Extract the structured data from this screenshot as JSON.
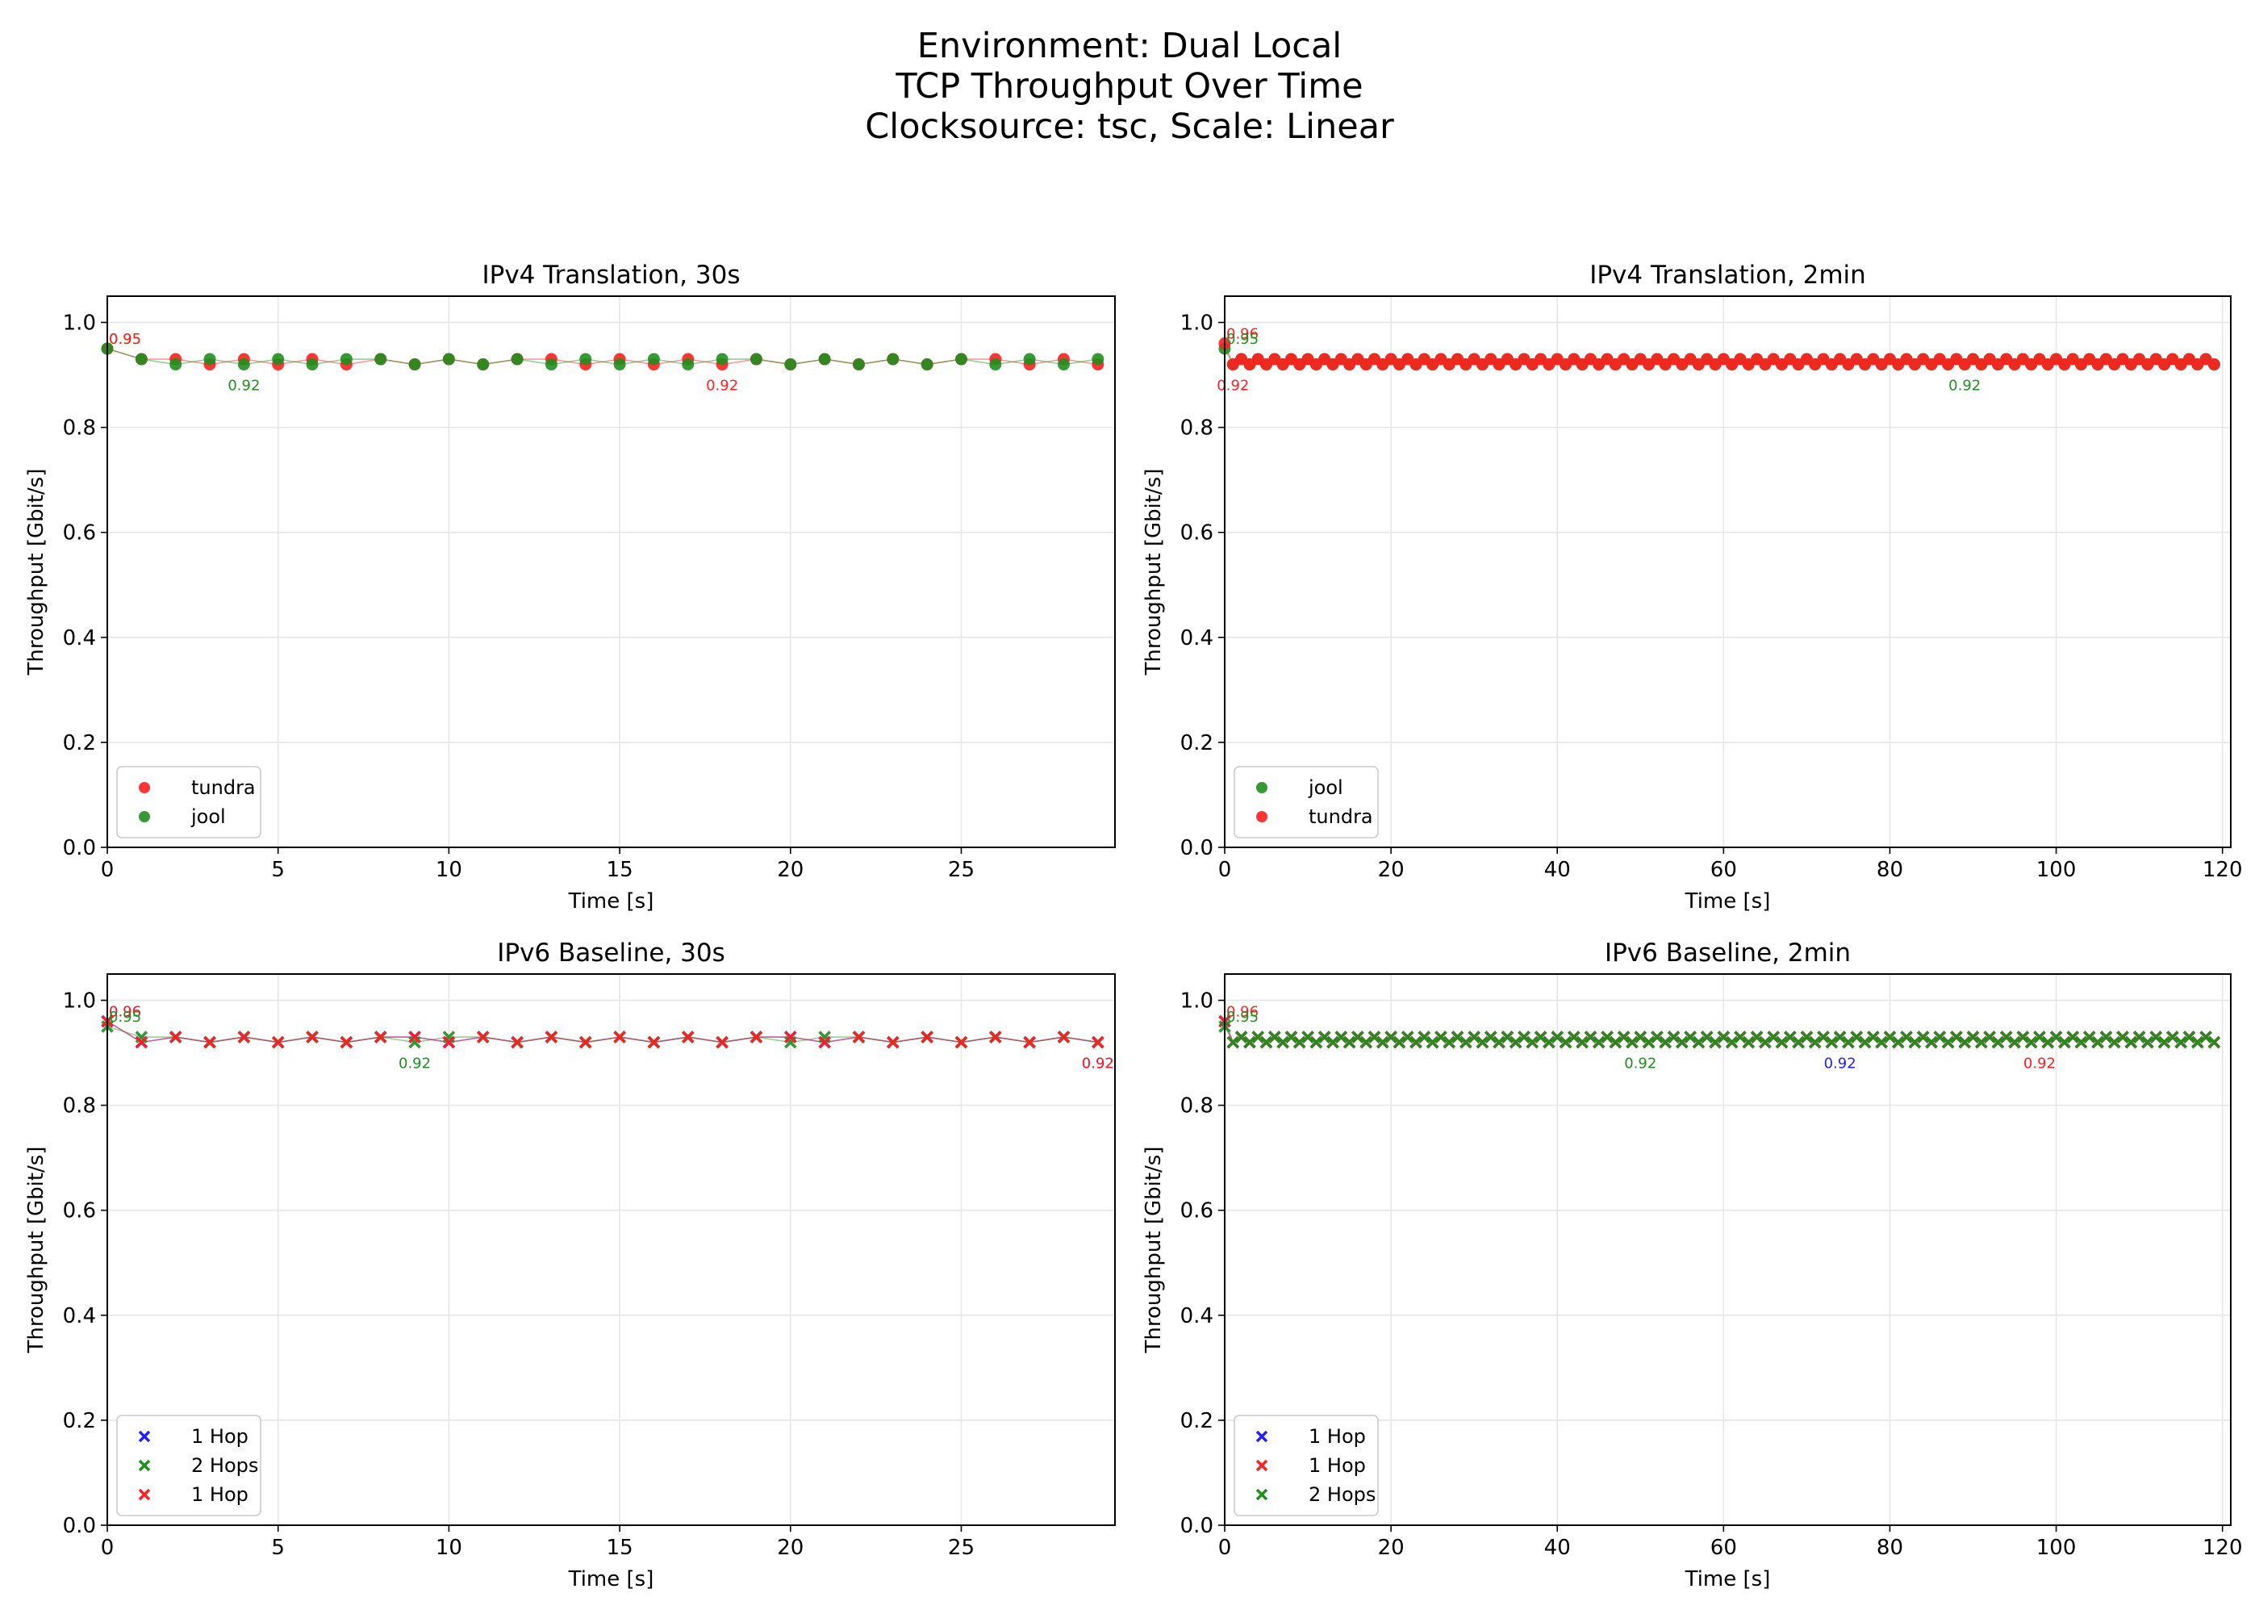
{
  "figure": {
    "title_lines": [
      "Environment: Dual Local",
      "TCP Throughput Over Time",
      "Clocksource: tsc, Scale: Linear"
    ]
  },
  "colors": {
    "red": "#ff1f1f",
    "green": "#1f8f1f",
    "blue": "#1f1fff"
  },
  "chart_data": [
    {
      "type": "scatter",
      "title": "IPv4 Translation, 30s",
      "xlabel": "Time [s]",
      "ylabel": "Throughput [Gbit/s]",
      "xlim": [
        0,
        29.5
      ],
      "ylim": [
        0,
        1.05
      ],
      "xticks": [
        0,
        5,
        10,
        15,
        20,
        25
      ],
      "yticks": [
        0.0,
        0.2,
        0.4,
        0.6,
        0.8,
        1.0
      ],
      "grid": true,
      "legend_position": "lower-left",
      "marker": "circle",
      "series": [
        {
          "name": "tundra",
          "color": "#ff1f1f",
          "x": [
            0,
            1,
            2,
            3,
            4,
            5,
            6,
            7,
            8,
            9,
            10,
            11,
            12,
            13,
            14,
            15,
            16,
            17,
            18,
            19,
            20,
            21,
            22,
            23,
            24,
            25,
            26,
            27,
            28,
            29
          ],
          "y": [
            0.95,
            0.93,
            0.93,
            0.92,
            0.93,
            0.92,
            0.93,
            0.92,
            0.93,
            0.92,
            0.93,
            0.92,
            0.93,
            0.93,
            0.92,
            0.93,
            0.92,
            0.93,
            0.92,
            0.93,
            0.92,
            0.93,
            0.92,
            0.93,
            0.92,
            0.93,
            0.93,
            0.92,
            0.93,
            0.92
          ]
        },
        {
          "name": "jool",
          "color": "#1f8f1f",
          "x": [
            0,
            1,
            2,
            3,
            4,
            5,
            6,
            7,
            8,
            9,
            10,
            11,
            12,
            13,
            14,
            15,
            16,
            17,
            18,
            19,
            20,
            21,
            22,
            23,
            24,
            25,
            26,
            27,
            28,
            29
          ],
          "y": [
            0.95,
            0.93,
            0.92,
            0.93,
            0.92,
            0.93,
            0.92,
            0.93,
            0.93,
            0.92,
            0.93,
            0.92,
            0.93,
            0.92,
            0.93,
            0.92,
            0.93,
            0.92,
            0.93,
            0.93,
            0.92,
            0.93,
            0.92,
            0.93,
            0.92,
            0.93,
            0.92,
            0.93,
            0.92,
            0.93
          ]
        }
      ],
      "annotations": [
        {
          "text": "0.95",
          "x": 0,
          "y": 0.95,
          "color": "#1f8f1f"
        },
        {
          "text": "0.95",
          "x": 0,
          "y": 0.95,
          "color": "#ff1f1f"
        },
        {
          "text": "0.92",
          "x": 4,
          "y": 0.92,
          "color": "#1f8f1f"
        },
        {
          "text": "0.92",
          "x": 18,
          "y": 0.92,
          "color": "#ff1f1f"
        }
      ]
    },
    {
      "type": "scatter",
      "title": "IPv4 Translation, 2min",
      "xlabel": "Time [s]",
      "ylabel": "Throughput [Gbit/s]",
      "xlim": [
        0,
        121
      ],
      "ylim": [
        0,
        1.05
      ],
      "xticks": [
        0,
        20,
        40,
        60,
        80,
        100,
        120
      ],
      "yticks": [
        0.0,
        0.2,
        0.4,
        0.6,
        0.8,
        1.0
      ],
      "grid": true,
      "legend_position": "lower-left",
      "marker": "circle",
      "series": [
        {
          "name": "jool",
          "color": "#1f8f1f",
          "count": 120,
          "first": 0.95,
          "low": 0.92,
          "high": 0.93
        },
        {
          "name": "tundra",
          "color": "#ff1f1f",
          "count": 120,
          "first": 0.96,
          "low": 0.92,
          "high": 0.93
        }
      ],
      "annotations": [
        {
          "text": "0.96",
          "x": 0,
          "y": 0.96,
          "color": "#ff1f1f"
        },
        {
          "text": "0.95",
          "x": 0,
          "y": 0.95,
          "color": "#1f8f1f"
        },
        {
          "text": "0.92",
          "x": 1,
          "y": 0.92,
          "color": "#ff1f1f"
        },
        {
          "text": "0.92",
          "x": 89,
          "y": 0.92,
          "color": "#1f8f1f"
        }
      ]
    },
    {
      "type": "scatter",
      "title": "IPv6 Baseline, 30s",
      "xlabel": "Time [s]",
      "ylabel": "Throughput [Gbit/s]",
      "xlim": [
        0,
        29.5
      ],
      "ylim": [
        0,
        1.05
      ],
      "xticks": [
        0,
        5,
        10,
        15,
        20,
        25
      ],
      "yticks": [
        0.0,
        0.2,
        0.4,
        0.6,
        0.8,
        1.0
      ],
      "grid": true,
      "legend_position": "lower-left",
      "marker": "x",
      "series": [
        {
          "name": "1 Hop",
          "color": "#1f1fff",
          "x": [
            0,
            1,
            2,
            3,
            4,
            5,
            6,
            7,
            8,
            9,
            10,
            11,
            12,
            13,
            14,
            15,
            16,
            17,
            18,
            19,
            20,
            21,
            22,
            23,
            24,
            25,
            26,
            27,
            28,
            29
          ],
          "y": [
            0.96,
            0.92,
            0.93,
            0.92,
            0.93,
            0.92,
            0.93,
            0.92,
            0.93,
            0.93,
            0.92,
            0.93,
            0.92,
            0.93,
            0.92,
            0.93,
            0.92,
            0.93,
            0.92,
            0.93,
            0.93,
            0.92,
            0.93,
            0.92,
            0.93,
            0.92,
            0.93,
            0.92,
            0.93,
            0.92
          ]
        },
        {
          "name": "2 Hops",
          "color": "#1f8f1f",
          "x": [
            0,
            1,
            2,
            3,
            4,
            5,
            6,
            7,
            8,
            9,
            10,
            11,
            12,
            13,
            14,
            15,
            16,
            17,
            18,
            19,
            20,
            21,
            22,
            23,
            24,
            25,
            26,
            27,
            28,
            29
          ],
          "y": [
            0.95,
            0.93,
            0.93,
            0.92,
            0.93,
            0.92,
            0.93,
            0.92,
            0.93,
            0.92,
            0.93,
            0.93,
            0.92,
            0.93,
            0.92,
            0.93,
            0.92,
            0.93,
            0.92,
            0.93,
            0.92,
            0.93,
            0.93,
            0.92,
            0.93,
            0.92,
            0.93,
            0.92,
            0.93,
            0.92
          ]
        },
        {
          "name": "1 Hop",
          "color": "#ff1f1f",
          "x": [
            0,
            1,
            2,
            3,
            4,
            5,
            6,
            7,
            8,
            9,
            10,
            11,
            12,
            13,
            14,
            15,
            16,
            17,
            18,
            19,
            20,
            21,
            22,
            23,
            24,
            25,
            26,
            27,
            28,
            29
          ],
          "y": [
            0.96,
            0.92,
            0.93,
            0.92,
            0.93,
            0.92,
            0.93,
            0.92,
            0.93,
            0.93,
            0.92,
            0.93,
            0.92,
            0.93,
            0.92,
            0.93,
            0.92,
            0.93,
            0.92,
            0.93,
            0.93,
            0.92,
            0.93,
            0.92,
            0.93,
            0.92,
            0.93,
            0.92,
            0.93,
            0.92
          ]
        }
      ],
      "annotations": [
        {
          "text": "0.96",
          "x": 0,
          "y": 0.96,
          "color": "#1f1fff"
        },
        {
          "text": "0.96",
          "x": 0,
          "y": 0.96,
          "color": "#ff1f1f"
        },
        {
          "text": "0.95",
          "x": 0,
          "y": 0.95,
          "color": "#1f8f1f"
        },
        {
          "text": "0.92",
          "x": 9,
          "y": 0.92,
          "color": "#1f8f1f"
        },
        {
          "text": "0.92",
          "x": 29,
          "y": 0.92,
          "color": "#1f1fff"
        },
        {
          "text": "0.92",
          "x": 29,
          "y": 0.92,
          "color": "#ff1f1f"
        }
      ]
    },
    {
      "type": "scatter",
      "title": "IPv6 Baseline, 2min",
      "xlabel": "Time [s]",
      "ylabel": "Throughput [Gbit/s]",
      "xlim": [
        0,
        121
      ],
      "ylim": [
        0,
        1.05
      ],
      "xticks": [
        0,
        20,
        40,
        60,
        80,
        100,
        120
      ],
      "yticks": [
        0.0,
        0.2,
        0.4,
        0.6,
        0.8,
        1.0
      ],
      "grid": true,
      "legend_position": "lower-left",
      "marker": "x",
      "series": [
        {
          "name": "1 Hop",
          "color": "#1f1fff",
          "count": 120,
          "first": 0.96,
          "low": 0.92,
          "high": 0.93
        },
        {
          "name": "1 Hop",
          "color": "#ff1f1f",
          "count": 120,
          "first": 0.96,
          "low": 0.92,
          "high": 0.93
        },
        {
          "name": "2 Hops",
          "color": "#1f8f1f",
          "count": 120,
          "first": 0.95,
          "low": 0.92,
          "high": 0.93
        }
      ],
      "annotations": [
        {
          "text": "0.96",
          "x": 0,
          "y": 0.96,
          "color": "#ff1f1f"
        },
        {
          "text": "0.95",
          "x": 0,
          "y": 0.95,
          "color": "#1f8f1f"
        },
        {
          "text": "0.92",
          "x": 50,
          "y": 0.92,
          "color": "#1f8f1f"
        },
        {
          "text": "0.92",
          "x": 74,
          "y": 0.92,
          "color": "#1f1fff"
        },
        {
          "text": "0.92",
          "x": 98,
          "y": 0.92,
          "color": "#ff1f1f"
        }
      ]
    }
  ]
}
